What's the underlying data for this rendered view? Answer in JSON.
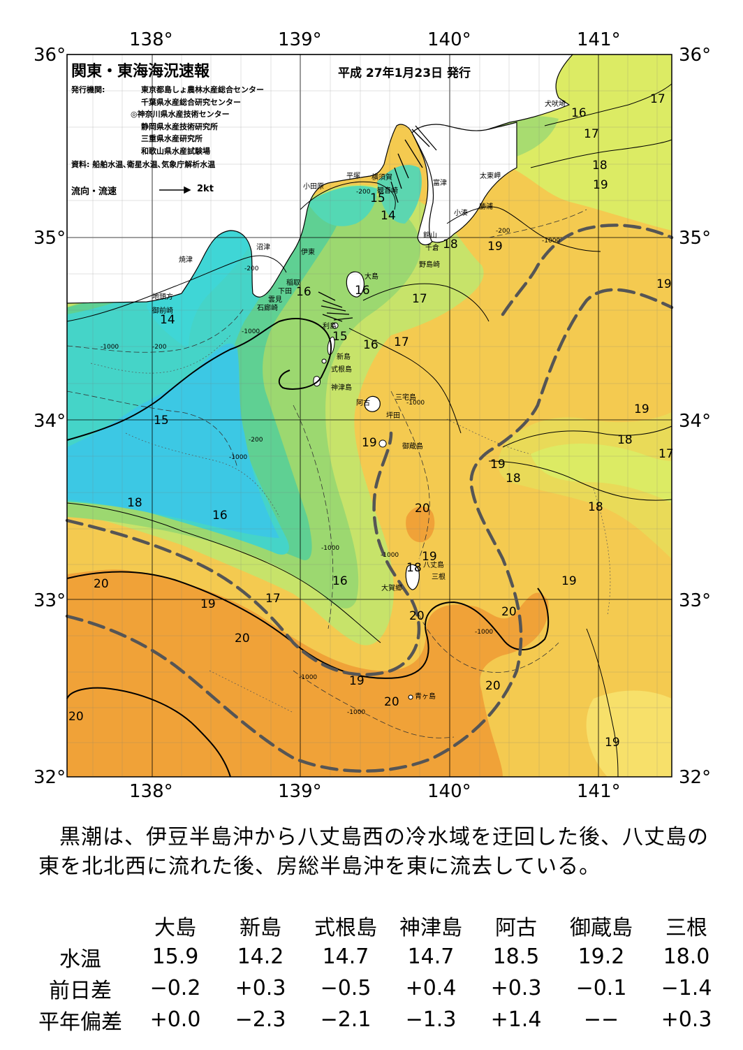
{
  "title": "関東・東海海況速報",
  "issue_date": "平成 27年1月23日 発行",
  "publisher_label": "発行機関:",
  "publishers": [
    "東京都島しょ農林水産総合センター",
    "千葉県水産総合研究センター",
    "◎神奈川県水産技術センター",
    "静岡県水産技術研究所",
    "三重県水産研究所",
    "和歌山県水産試験場"
  ],
  "source": "資料: 船舶水温､衛星水温､気象庁解析水温",
  "legend": {
    "label": "流向・流速",
    "unit": "2kt"
  },
  "longitude_labels": [
    "138°",
    "139°",
    "140°",
    "141°"
  ],
  "latitude_labels": [
    "36°",
    "35°",
    "34°",
    "33°",
    "32°"
  ],
  "place_names": {
    "inubozaki": "犬吠埼",
    "taitomisaki": "太東岬",
    "katsuura": "勝浦",
    "kominato": "小湊",
    "futtsu": "富津",
    "yokosuka": "横須賀",
    "kannonzaki": "観音崎",
    "hiratsuka": "平塚",
    "odawara": "小田原",
    "tateyama": "館山",
    "chikura": "千倉",
    "nojimazaki": "野島崎",
    "numazu": "沼津",
    "ito": "伊東",
    "yaizu": "焼津",
    "inatori": "稲取",
    "shimoda": "下田",
    "kumomi": "雲見",
    "irozaki": "石廊崎",
    "jitozaki": "地頭方",
    "omaezaki": "御前崎",
    "oshima": "大島",
    "toshima": "利島",
    "niijima": "新島",
    "shikinejima": "式根島",
    "kozushima": "神津島",
    "miyakejima": "三宅島",
    "ako": "阿古",
    "tsubota": "坪田",
    "mikurajima": "御蔵島",
    "hachijojima": "八丈島",
    "sane": "三根",
    "okago": "大賀郷",
    "aogashima": "青ヶ島"
  },
  "depth_labels": [
    "-200",
    "-1000"
  ],
  "isotherm_labels": [
    "14",
    "14",
    "15",
    "15",
    "15",
    "16",
    "16",
    "16",
    "16",
    "16",
    "16",
    "17",
    "17",
    "17",
    "17",
    "17",
    "17",
    "18",
    "18",
    "18",
    "18",
    "18",
    "18",
    "18",
    "19",
    "19",
    "19",
    "19",
    "19",
    "19",
    "19",
    "19",
    "19",
    "19",
    "19",
    "20",
    "20",
    "20",
    "20",
    "20",
    "20",
    "20",
    "20"
  ],
  "summary": "黒潮は、伊豆半島沖から八丈島西の冷水域を迂回した後、八丈島の東を北北西に流れた後、房総半島沖を東に流去している。",
  "table": {
    "headers": [
      "大島",
      "新島",
      "式根島",
      "神津島",
      "阿古",
      "御蔵島",
      "三根"
    ],
    "rows": [
      {
        "label": "水温",
        "values": [
          "15.9",
          "14.2",
          "14.7",
          "14.7",
          "18.5",
          "19.2",
          "18.0"
        ]
      },
      {
        "label": "前日差",
        "values": [
          "−0.2",
          "+0.3",
          "−0.5",
          "+0.4",
          "+0.3",
          "−0.1",
          "−1.4"
        ]
      },
      {
        "label": "平年偏差",
        "values": [
          "+0.0",
          "−2.3",
          "−2.1",
          "−1.3",
          "+1.4",
          "−−",
          "+0.3"
        ]
      }
    ]
  },
  "colors": {
    "water_18": "#f2cf5a",
    "water_19": "#f5c94c",
    "water_20": "#f2a53a",
    "water_17": "#d7ea62",
    "water_16": "#a8d96c",
    "water_15": "#6fd389",
    "water_14": "#3fd3bd",
    "cold": "#35c8e0",
    "land": "#ffffff",
    "kuroshio_axis": "#555555",
    "warm_yellow": "#fbf07a"
  }
}
